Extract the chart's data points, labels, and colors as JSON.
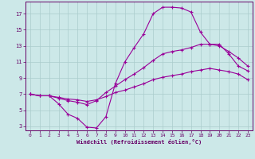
{
  "xlabel": "Windchill (Refroidissement éolien,°C)",
  "bg_color": "#cce8e8",
  "line_color": "#990099",
  "grid_color": "#aacccc",
  "axis_color": "#660066",
  "tick_color": "#660066",
  "xlim": [
    -0.5,
    23.5
  ],
  "ylim": [
    2.5,
    18.5
  ],
  "xticks": [
    0,
    1,
    2,
    3,
    4,
    5,
    6,
    7,
    8,
    9,
    10,
    11,
    12,
    13,
    14,
    15,
    16,
    17,
    18,
    19,
    20,
    21,
    22,
    23
  ],
  "yticks": [
    3,
    5,
    7,
    9,
    11,
    13,
    15,
    17
  ],
  "curve1_x": [
    0,
    1,
    2,
    3,
    4,
    5,
    6,
    7,
    8,
    9,
    10,
    11,
    12,
    13,
    14,
    15,
    16,
    17,
    18,
    19,
    20,
    21,
    22,
    23
  ],
  "curve1_y": [
    7.0,
    6.8,
    6.8,
    5.8,
    4.5,
    4.0,
    2.9,
    2.8,
    4.2,
    8.3,
    11.0,
    12.8,
    14.5,
    17.0,
    17.8,
    17.8,
    17.7,
    17.2,
    14.7,
    13.2,
    13.2,
    12.0,
    10.5,
    9.9
  ],
  "curve2_x": [
    0,
    1,
    2,
    3,
    4,
    5,
    6,
    7,
    8,
    9,
    10,
    11,
    12,
    13,
    14,
    15,
    16,
    17,
    18,
    19,
    20,
    21,
    22,
    23
  ],
  "curve2_y": [
    7.0,
    6.8,
    6.8,
    6.5,
    6.2,
    6.0,
    5.7,
    6.2,
    7.2,
    8.0,
    8.8,
    9.5,
    10.3,
    11.2,
    12.0,
    12.3,
    12.5,
    12.8,
    13.2,
    13.2,
    13.0,
    12.3,
    11.5,
    10.5
  ],
  "curve3_x": [
    0,
    1,
    2,
    3,
    4,
    5,
    6,
    7,
    8,
    9,
    10,
    11,
    12,
    13,
    14,
    15,
    16,
    17,
    18,
    19,
    20,
    21,
    22,
    23
  ],
  "curve3_y": [
    7.0,
    6.8,
    6.8,
    6.6,
    6.4,
    6.3,
    6.1,
    6.3,
    6.7,
    7.2,
    7.5,
    7.9,
    8.3,
    8.8,
    9.1,
    9.3,
    9.5,
    9.8,
    10.0,
    10.2,
    10.0,
    9.8,
    9.5,
    8.8
  ]
}
